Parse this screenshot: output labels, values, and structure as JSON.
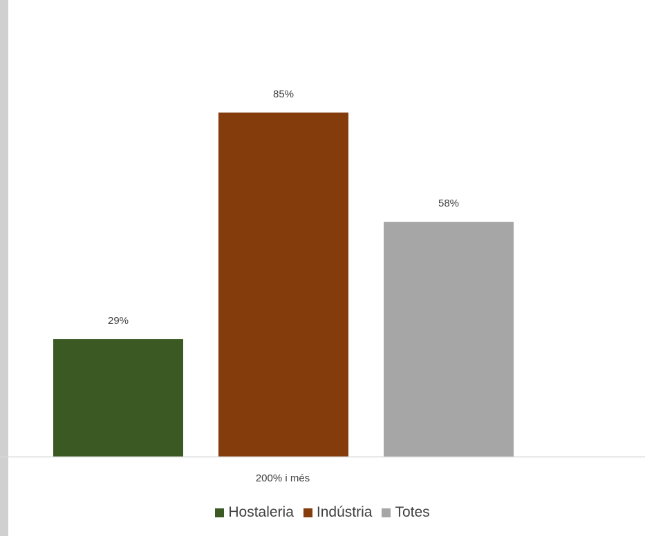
{
  "chart_data": {
    "type": "bar",
    "categories": [
      "200% i més"
    ],
    "series": [
      {
        "name": "Hostaleria",
        "values": [
          29
        ],
        "color": "#3b5a23",
        "label": "29%"
      },
      {
        "name": "Indústria",
        "values": [
          85
        ],
        "color": "#843c0c",
        "label": "85%"
      },
      {
        "name": "Totes",
        "values": [
          58
        ],
        "color": "#a6a6a6",
        "label": "58%"
      }
    ],
    "title": "",
    "xlabel": "",
    "ylabel": "",
    "ylim": [
      0,
      100
    ],
    "grid": false,
    "legend_position": "bottom"
  },
  "colors": {
    "axis_line": "#d9d9d9",
    "left_strip": "#d0d0d0"
  }
}
